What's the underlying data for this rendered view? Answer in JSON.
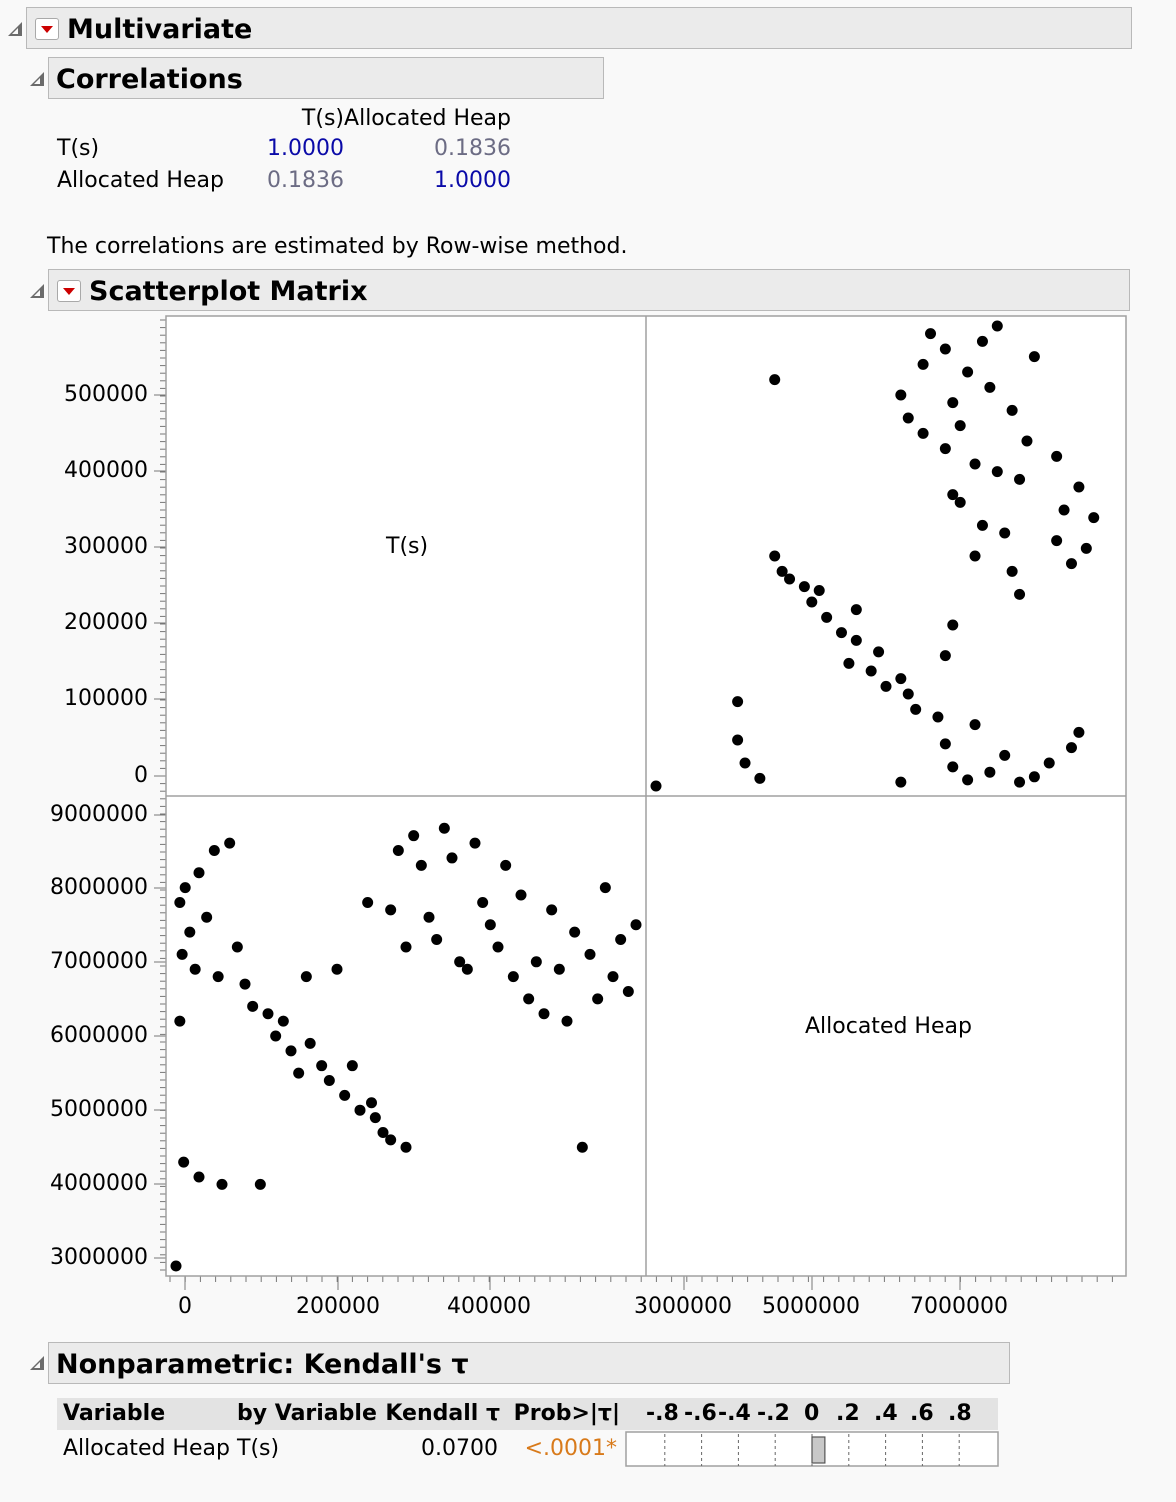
{
  "multivariate": {
    "title": "Multivariate"
  },
  "correlations": {
    "title": "Correlations",
    "columns": [
      "T(s)",
      "Allocated Heap"
    ],
    "rows": [
      {
        "label": "T(s)",
        "values": [
          "1.0000",
          "0.1836"
        ]
      },
      {
        "label": "Allocated Heap",
        "values": [
          "0.1836",
          "1.0000"
        ]
      }
    ],
    "note": "The correlations are estimated by Row-wise method."
  },
  "scatterplot_matrix": {
    "title": "Scatterplot Matrix",
    "diag_labels": [
      "T(s)",
      "Allocated Heap"
    ],
    "y_ticks_top": [
      "500000",
      "400000",
      "300000",
      "200000",
      "100000",
      "0"
    ],
    "y_ticks_bottom": [
      "9000000",
      "8000000",
      "7000000",
      "6000000",
      "5000000",
      "4000000",
      "3000000"
    ],
    "x_ticks_left": [
      "0",
      "200000",
      "400000"
    ],
    "x_ticks_right": [
      "3000000",
      "5000000",
      "7000000"
    ],
    "colors": {
      "points": "#000000",
      "frame": "#a0a0a0",
      "bg": "#ffffff"
    }
  },
  "chart_data": {
    "type": "scatter",
    "variables": [
      "T(s)",
      "Allocated Heap"
    ],
    "ranges": {
      "T(s)": [
        0,
        600000
      ],
      "Allocated Heap": [
        2900000,
        9100000
      ]
    },
    "points": [
      [
        5000,
        6200000
      ],
      [
        5000,
        7800000
      ],
      [
        8000,
        7100000
      ],
      [
        10000,
        4300000
      ],
      [
        12000,
        8000000
      ],
      [
        18000,
        7400000
      ],
      [
        25000,
        6900000
      ],
      [
        30000,
        4100000
      ],
      [
        30000,
        8200000
      ],
      [
        40000,
        7600000
      ],
      [
        50000,
        8500000
      ],
      [
        55000,
        6800000
      ],
      [
        60000,
        4000000
      ],
      [
        70000,
        8600000
      ],
      [
        80000,
        7200000
      ],
      [
        90000,
        6700000
      ],
      [
        100000,
        6400000
      ],
      [
        110000,
        4000000
      ],
      [
        120000,
        6300000
      ],
      [
        130000,
        6000000
      ],
      [
        140000,
        6200000
      ],
      [
        150000,
        5800000
      ],
      [
        160000,
        5500000
      ],
      [
        170000,
        6800000
      ],
      [
        175000,
        5900000
      ],
      [
        190000,
        5600000
      ],
      [
        200000,
        5400000
      ],
      [
        210000,
        6900000
      ],
      [
        220000,
        5200000
      ],
      [
        230000,
        5600000
      ],
      [
        240000,
        5000000
      ],
      [
        250000,
        7800000
      ],
      [
        255000,
        5100000
      ],
      [
        260000,
        4900000
      ],
      [
        270000,
        4700000
      ],
      [
        280000,
        4600000
      ],
      [
        280000,
        7700000
      ],
      [
        290000,
        8500000
      ],
      [
        300000,
        7200000
      ],
      [
        300000,
        4500000
      ],
      [
        310000,
        8700000
      ],
      [
        320000,
        8300000
      ],
      [
        330000,
        7600000
      ],
      [
        340000,
        7300000
      ],
      [
        350000,
        8800000
      ],
      [
        360000,
        8400000
      ],
      [
        370000,
        7000000
      ],
      [
        380000,
        6900000
      ],
      [
        390000,
        8600000
      ],
      [
        400000,
        7800000
      ],
      [
        410000,
        7500000
      ],
      [
        420000,
        7200000
      ],
      [
        430000,
        8300000
      ],
      [
        440000,
        6800000
      ],
      [
        450000,
        7900000
      ],
      [
        460000,
        6500000
      ],
      [
        470000,
        7000000
      ],
      [
        480000,
        6300000
      ],
      [
        490000,
        7700000
      ],
      [
        500000,
        6900000
      ],
      [
        510000,
        6200000
      ],
      [
        520000,
        7400000
      ],
      [
        530000,
        4500000
      ],
      [
        540000,
        7100000
      ],
      [
        550000,
        6500000
      ],
      [
        560000,
        8000000
      ],
      [
        570000,
        6800000
      ],
      [
        580000,
        7300000
      ],
      [
        590000,
        6600000
      ],
      [
        600000,
        7500000
      ],
      [
        0,
        2900000
      ]
    ]
  },
  "kendall": {
    "title": "Nonparametric: Kendall's τ",
    "headers": {
      "variable": "Variable",
      "by_variable": "by Variable",
      "kendall": "Kendall τ",
      "prob": "Prob>|τ|"
    },
    "scale_labels": [
      "-.8",
      "-.6",
      "-.4",
      "-.2",
      "0",
      ".2",
      ".4",
      ".6",
      ".8"
    ],
    "rows": [
      {
        "variable": "Allocated Heap",
        "by_variable": "T(s)",
        "kendall": "0.0700",
        "prob": "<.0001*",
        "tau_value": 0.07
      }
    ],
    "colors": {
      "prob": "#d87a1a",
      "bar_fill": "#c8c8c8"
    }
  }
}
